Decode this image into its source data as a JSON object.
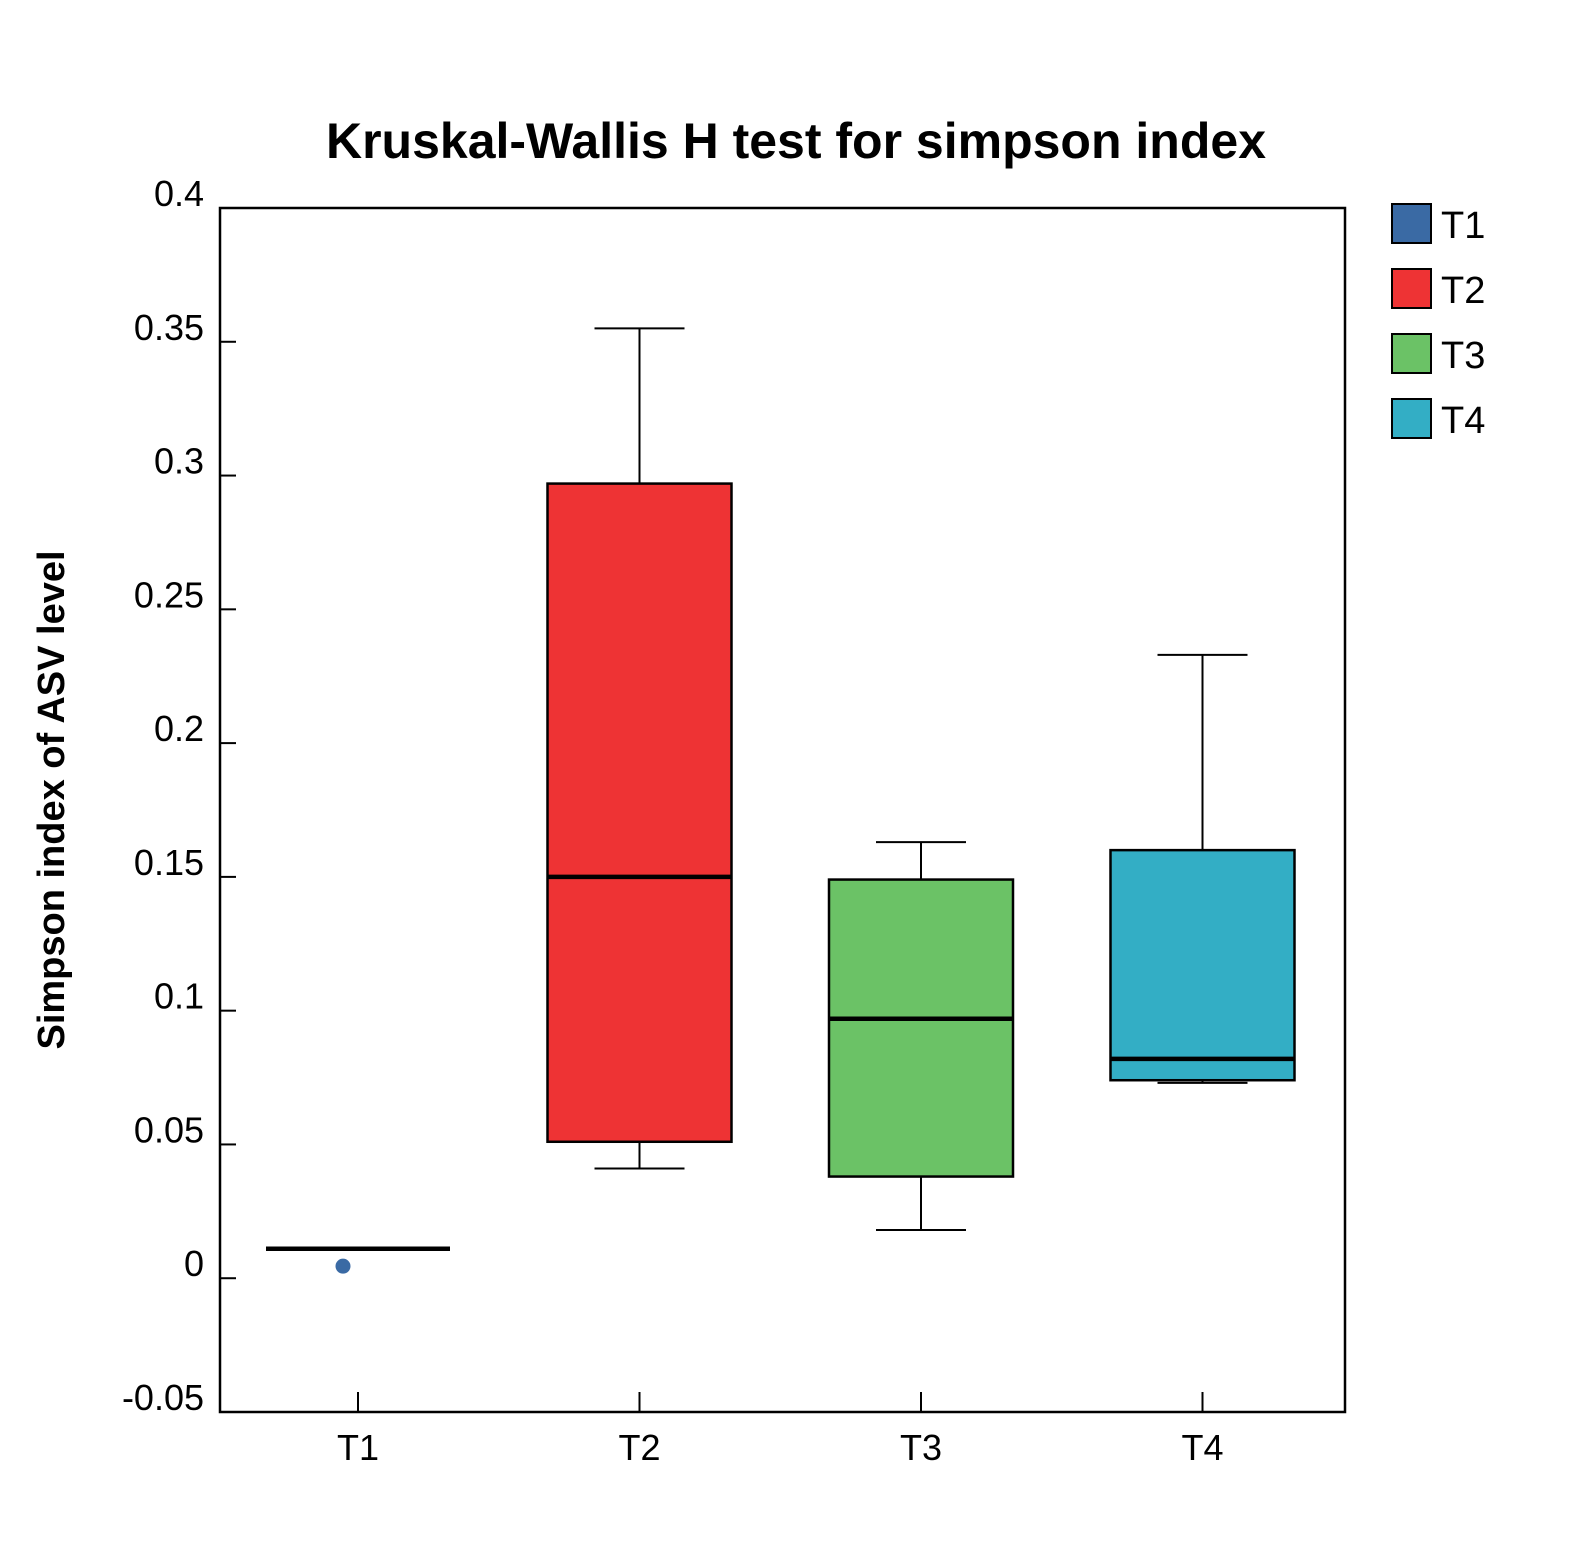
{
  "chart_data": {
    "type": "box",
    "title": "Kruskal-Wallis H test for simpson index",
    "xlabel": "",
    "ylabel": "Simpson index of ASV level",
    "ylim": [
      -0.05,
      0.4
    ],
    "yticks": [
      {
        "value": 0.4,
        "label": "0.4"
      },
      {
        "value": 0.35,
        "label": "0.35"
      },
      {
        "value": 0.3,
        "label": "0.3"
      },
      {
        "value": 0.25,
        "label": "0.25"
      },
      {
        "value": 0.2,
        "label": "0.2"
      },
      {
        "value": 0.15,
        "label": "0.15"
      },
      {
        "value": 0.1,
        "label": "0.1"
      },
      {
        "value": 0.05,
        "label": "0.05"
      },
      {
        "value": 0,
        "label": "0"
      },
      {
        "value": -0.05,
        "label": "-0.05"
      }
    ],
    "categories": [
      "T1",
      "T2",
      "T3",
      "T4"
    ],
    "grid": false,
    "legend_position": "right",
    "series": [
      {
        "name": "T1",
        "color": "#3a6aa4",
        "whisker_low": 0.011,
        "q1": 0.011,
        "median": 0.011,
        "q3": 0.011,
        "whisker_high": 0.011,
        "outliers": [
          0.0045
        ]
      },
      {
        "name": "T2",
        "color": "#ee3334",
        "whisker_low": 0.041,
        "q1": 0.051,
        "median": 0.15,
        "q3": 0.297,
        "whisker_high": 0.355,
        "outliers": []
      },
      {
        "name": "T3",
        "color": "#6bc266",
        "whisker_low": 0.018,
        "q1": 0.038,
        "median": 0.097,
        "q3": 0.149,
        "whisker_high": 0.163,
        "outliers": []
      },
      {
        "name": "T4",
        "color": "#33aec5",
        "whisker_low": 0.073,
        "q1": 0.074,
        "median": 0.082,
        "q3": 0.16,
        "whisker_high": 0.233,
        "outliers": []
      }
    ]
  }
}
